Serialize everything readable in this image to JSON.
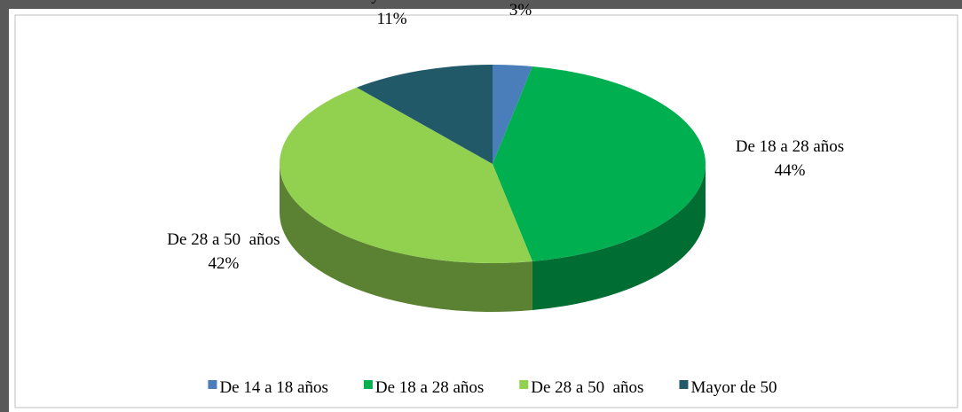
{
  "chart_data": {
    "type": "pie",
    "categories": [
      "De 14 a 18 años",
      "De 18 a 28 años",
      "De 28 a 50  años",
      "Mayor de 50"
    ],
    "values": [
      3,
      44,
      42,
      11
    ],
    "value_labels": [
      "3%",
      "44%",
      "42%",
      "11%"
    ],
    "colors": [
      "#4a7ebb",
      "#00b050",
      "#92d050",
      "#215968"
    ],
    "legend": "bottom"
  }
}
